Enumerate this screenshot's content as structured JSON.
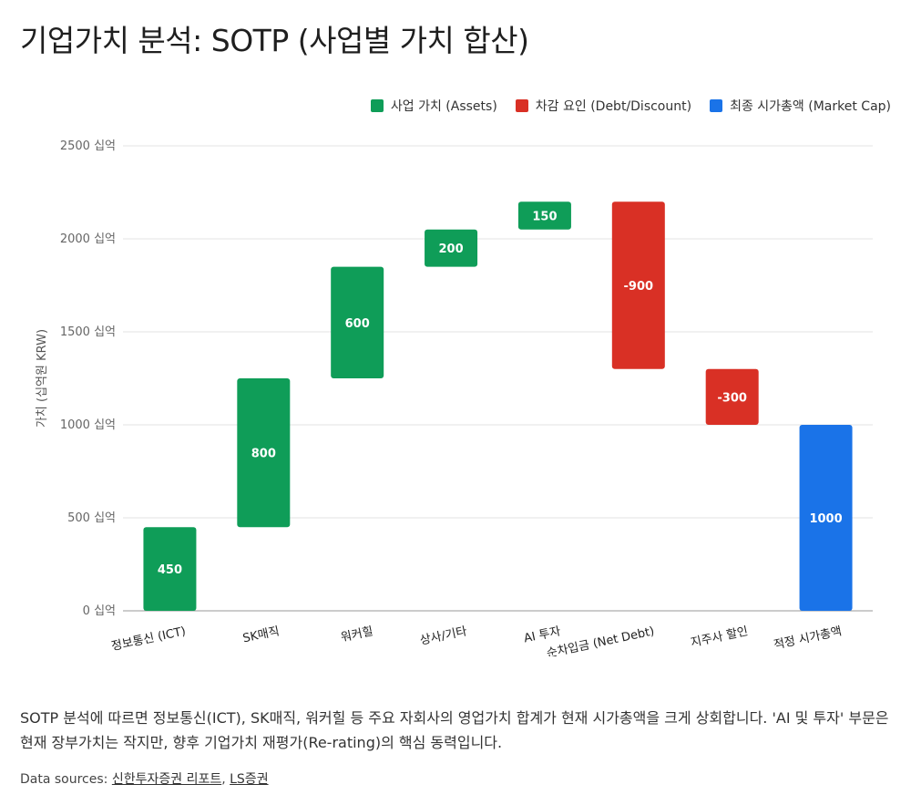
{
  "title": "기업가치 분석: SOTP (사업별 가치 합산)",
  "legend": [
    {
      "label": "사업 가치 (Assets)",
      "color": "#0f9d58"
    },
    {
      "label": "차감 요인 (Debt/Discount)",
      "color": "#d93025"
    },
    {
      "label": "최종 시가총액 (Market Cap)",
      "color": "#1a73e8"
    }
  ],
  "chart_data": {
    "type": "waterfall",
    "ylabel": "가치 (십억원 KRW)",
    "ylim": [
      0,
      2500
    ],
    "yticks": [
      {
        "value": 0,
        "label": "0 십억"
      },
      {
        "value": 500,
        "label": "500 십억"
      },
      {
        "value": 1000,
        "label": "1000 십억"
      },
      {
        "value": 1500,
        "label": "1500 십억"
      },
      {
        "value": 2000,
        "label": "2000 십억"
      },
      {
        "value": 2500,
        "label": "2500 십억"
      }
    ],
    "grid": true,
    "legend_position": "top-right",
    "steps": [
      {
        "category": "정보통신 (ICT)",
        "start": 0,
        "end": 450,
        "label": "450",
        "kind": "asset"
      },
      {
        "category": "SK매직",
        "start": 450,
        "end": 1250,
        "label": "800",
        "kind": "asset"
      },
      {
        "category": "워커힐",
        "start": 1250,
        "end": 1850,
        "label": "600",
        "kind": "asset"
      },
      {
        "category": "상사/기타",
        "start": 1850,
        "end": 2050,
        "label": "200",
        "kind": "asset"
      },
      {
        "category": "AI 투자",
        "start": 2050,
        "end": 2200,
        "label": "150",
        "kind": "asset"
      },
      {
        "category": "순차입금 (Net Debt)",
        "start": 2200,
        "end": 1300,
        "label": "-900",
        "kind": "deduction"
      },
      {
        "category": "지주사 할인",
        "start": 1300,
        "end": 1000,
        "label": "-300",
        "kind": "deduction"
      },
      {
        "category": "적정 시가총액",
        "start": 0,
        "end": 1000,
        "label": "1000",
        "kind": "total"
      }
    ],
    "colors": {
      "asset": "#0f9d58",
      "deduction": "#d93025",
      "total": "#1a73e8"
    }
  },
  "description": "SOTP 분석에 따르면 정보통신(ICT), SK매직, 워커힐 등 주요 자회사의 영업가치 합계가 현재 시가총액을 크게 상회합니다. 'AI 및 투자' 부문은 현재 장부가치는 작지만, 향후 기업가치 재평가(Re-rating)의 핵심 동력입니다.",
  "sources": {
    "prefix": "Data sources: ",
    "links": [
      "신한투자증권 리포트",
      "LS증권"
    ],
    "separator": ", "
  }
}
